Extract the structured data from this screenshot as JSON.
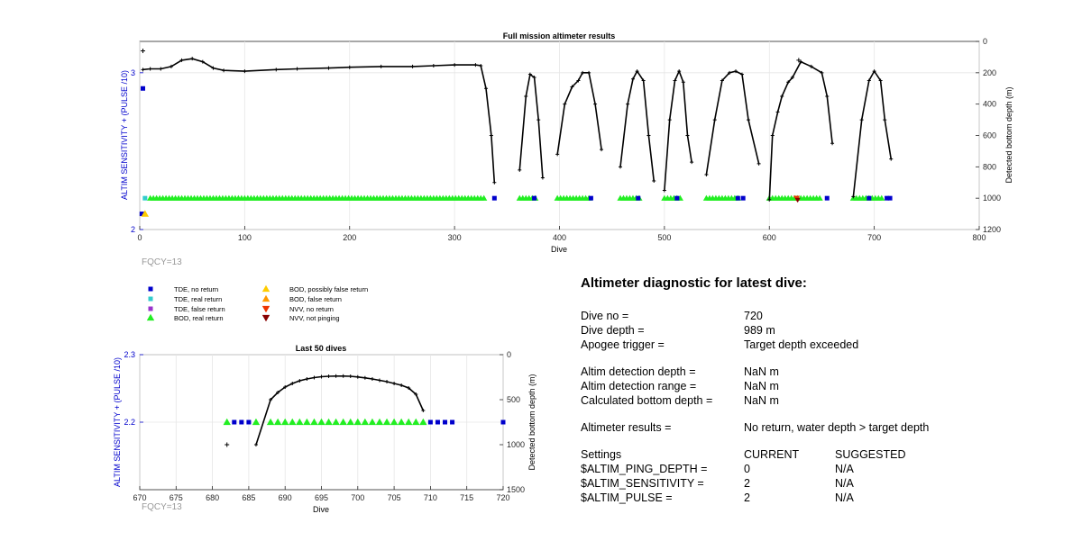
{
  "chart_data": [
    {
      "type": "line",
      "title": "Full mission altimeter results",
      "xlabel": "Dive",
      "ylabel": "ALTIM SENSITIVITY + (PULSE /10)",
      "y2label": "Detected bottom depth (m)",
      "xlim": [
        0,
        800
      ],
      "ylim": [
        2,
        3.2
      ],
      "y2lim": [
        0,
        1200
      ],
      "y2_reversed": true,
      "xticks": [
        "0",
        "100",
        "200",
        "300",
        "400",
        "500",
        "600",
        "700",
        "800"
      ],
      "yticks": [
        "2",
        "3"
      ],
      "y2ticks": [
        "0",
        "200",
        "400",
        "600",
        "800",
        "1000",
        "1200"
      ],
      "grid": true,
      "note": "FQCY=13",
      "depth_segments": [
        [
          [
            3,
            180
          ],
          [
            10,
            175
          ],
          [
            20,
            175
          ],
          [
            30,
            160
          ],
          [
            40,
            120
          ],
          [
            50,
            110
          ],
          [
            60,
            130
          ],
          [
            70,
            170
          ],
          [
            80,
            185
          ],
          [
            100,
            190
          ],
          [
            130,
            180
          ],
          [
            150,
            175
          ],
          [
            180,
            170
          ],
          [
            200,
            165
          ],
          [
            230,
            160
          ],
          [
            260,
            160
          ],
          [
            280,
            155
          ],
          [
            300,
            150
          ],
          [
            320,
            150
          ],
          [
            325,
            155
          ],
          [
            330,
            300
          ],
          [
            335,
            600
          ],
          [
            338,
            900
          ]
        ],
        [
          [
            362,
            820
          ],
          [
            368,
            350
          ],
          [
            372,
            210
          ],
          [
            376,
            230
          ],
          [
            380,
            500
          ],
          [
            384,
            870
          ]
        ],
        [
          [
            398,
            720
          ],
          [
            405,
            400
          ],
          [
            412,
            290
          ],
          [
            418,
            250
          ],
          [
            422,
            200
          ],
          [
            428,
            200
          ],
          [
            434,
            400
          ],
          [
            440,
            690
          ]
        ],
        [
          [
            458,
            800
          ],
          [
            465,
            400
          ],
          [
            470,
            240
          ],
          [
            474,
            190
          ],
          [
            480,
            250
          ],
          [
            485,
            600
          ],
          [
            490,
            890
          ]
        ],
        [
          [
            500,
            950
          ],
          [
            505,
            500
          ],
          [
            510,
            250
          ],
          [
            514,
            190
          ],
          [
            518,
            260
          ],
          [
            522,
            600
          ],
          [
            526,
            770
          ]
        ],
        [
          [
            540,
            850
          ],
          [
            548,
            500
          ],
          [
            555,
            250
          ],
          [
            562,
            200
          ],
          [
            568,
            190
          ],
          [
            574,
            210
          ],
          [
            580,
            500
          ],
          [
            590,
            780
          ]
        ],
        [
          [
            600,
            1010
          ],
          [
            603,
            600
          ],
          [
            608,
            450
          ],
          [
            612,
            350
          ],
          [
            618,
            260
          ],
          [
            622,
            230
          ],
          [
            630,
            130
          ],
          [
            640,
            160
          ],
          [
            650,
            200
          ],
          [
            655,
            350
          ],
          [
            660,
            650
          ]
        ],
        [
          [
            680,
            990
          ],
          [
            688,
            500
          ],
          [
            695,
            250
          ],
          [
            700,
            190
          ],
          [
            706,
            250
          ],
          [
            710,
            500
          ],
          [
            716,
            750
          ]
        ]
      ],
      "depth_outliers": [
        [
          3,
          60
        ],
        [
          628,
          120
        ]
      ],
      "sensitivity_start": 2.9,
      "tde_no_return_x": [
        338,
        376,
        430,
        475,
        512,
        570,
        575,
        655,
        695,
        712,
        715
      ],
      "tde_no_return_first": [
        [
          2,
          2.1
        ],
        [
          3,
          2.9
        ]
      ],
      "bod_real_return_runs": [
        [
          10,
          330
        ],
        [
          362,
          378
        ],
        [
          398,
          428
        ],
        [
          458,
          478
        ],
        [
          500,
          515
        ],
        [
          540,
          570
        ],
        [
          600,
          648
        ],
        [
          680,
          708
        ]
      ],
      "bod_possibly_false_return": [
        [
          5,
          2.1
        ]
      ],
      "nvv_no_return": [
        [
          626,
          2.2
        ]
      ],
      "nvv_not_pinging": [
        [
          627,
          2.21
        ]
      ]
    },
    {
      "type": "line",
      "title": "Last 50 dives",
      "xlabel": "Dive",
      "ylabel": "ALTIM SENSITIVITY + (PULSE /10)",
      "y2label": "Detected bottom depth (m)",
      "xlim": [
        670,
        720
      ],
      "ylim": [
        2.1,
        2.3
      ],
      "y2lim": [
        0,
        1500
      ],
      "y2_reversed": true,
      "xticks": [
        "670",
        "675",
        "680",
        "685",
        "690",
        "695",
        "700",
        "705",
        "710",
        "715",
        "720"
      ],
      "yticks": [
        "2.2",
        "2.3"
      ],
      "y2ticks": [
        "0",
        "500",
        "1000",
        "1500"
      ],
      "grid": true,
      "note": "FQCY=13",
      "depth_line": [
        [
          686,
          1000
        ],
        [
          688,
          500
        ],
        [
          689,
          420
        ],
        [
          690,
          360
        ],
        [
          691,
          320
        ],
        [
          692,
          290
        ],
        [
          693,
          270
        ],
        [
          694,
          255
        ],
        [
          695,
          245
        ],
        [
          696,
          240
        ],
        [
          697,
          238
        ],
        [
          698,
          238
        ],
        [
          699,
          240
        ],
        [
          700,
          248
        ],
        [
          701,
          258
        ],
        [
          702,
          270
        ],
        [
          703,
          285
        ],
        [
          704,
          300
        ],
        [
          705,
          320
        ],
        [
          706,
          340
        ],
        [
          707,
          370
        ],
        [
          708,
          440
        ],
        [
          709,
          620
        ]
      ],
      "depth_outliers": [
        [
          682,
          1000
        ]
      ],
      "tde_no_return_x": [
        683,
        684,
        685,
        710,
        711,
        712,
        713,
        720
      ],
      "bod_real_return_x": [
        682,
        686,
        688,
        689,
        690,
        691,
        692,
        693,
        694,
        695,
        696,
        697,
        698,
        699,
        700,
        701,
        702,
        703,
        704,
        705,
        706,
        707,
        708,
        709
      ]
    }
  ],
  "legend": [
    {
      "label": "TDE, no return",
      "marker": "square",
      "color": "#0000cc"
    },
    {
      "label": "TDE, real return",
      "marker": "square",
      "color": "#33cccc"
    },
    {
      "label": "TDE, false return",
      "marker": "square",
      "color": "#9933cc"
    },
    {
      "label": "BOD, real return",
      "marker": "triangle-up",
      "color": "#22ee22"
    },
    {
      "label": "BOD, possibly false return",
      "marker": "triangle-up",
      "color": "#ffcc00"
    },
    {
      "label": "BOD, false return",
      "marker": "triangle-up",
      "color": "#ff9900"
    },
    {
      "label": "NVV, no return",
      "marker": "triangle-down",
      "color": "#ee3300"
    },
    {
      "label": "NVV, not pinging",
      "marker": "triangle-down",
      "color": "#880000"
    }
  ],
  "colors": {
    "tde_no_return": "#0000cc",
    "bod_real_return": "#22ee22",
    "bod_possibly_false": "#ffcc00",
    "axis_left": "#0000cc",
    "note": "#999999"
  },
  "diagnostic": {
    "title": "Altimeter diagnostic for latest dive:",
    "dive_no_label": "Dive no =",
    "dive_no": "720",
    "dive_depth_label": "Dive depth =",
    "dive_depth": "989 m",
    "apogee_label": "Apogee trigger =",
    "apogee": "Target depth exceeded",
    "det_depth_label": "Altim detection depth =",
    "det_depth": "NaN m",
    "det_range_label": "Altim detection range =",
    "det_range": "NaN m",
    "calc_depth_label": "Calculated bottom depth =",
    "calc_depth": "NaN m",
    "results_label": "Altimeter results =",
    "results": "No return, water depth > target depth",
    "settings_label": "Settings",
    "current_label": "CURRENT",
    "suggested_label": "SUGGESTED",
    "settings": [
      {
        "name": "$ALTIM_PING_DEPTH =",
        "current": "0",
        "suggested": "N/A"
      },
      {
        "name": "$ALTIM_SENSITIVITY =",
        "current": "2",
        "suggested": "N/A"
      },
      {
        "name": "$ALTIM_PULSE =",
        "current": "2",
        "suggested": "N/A"
      }
    ]
  }
}
